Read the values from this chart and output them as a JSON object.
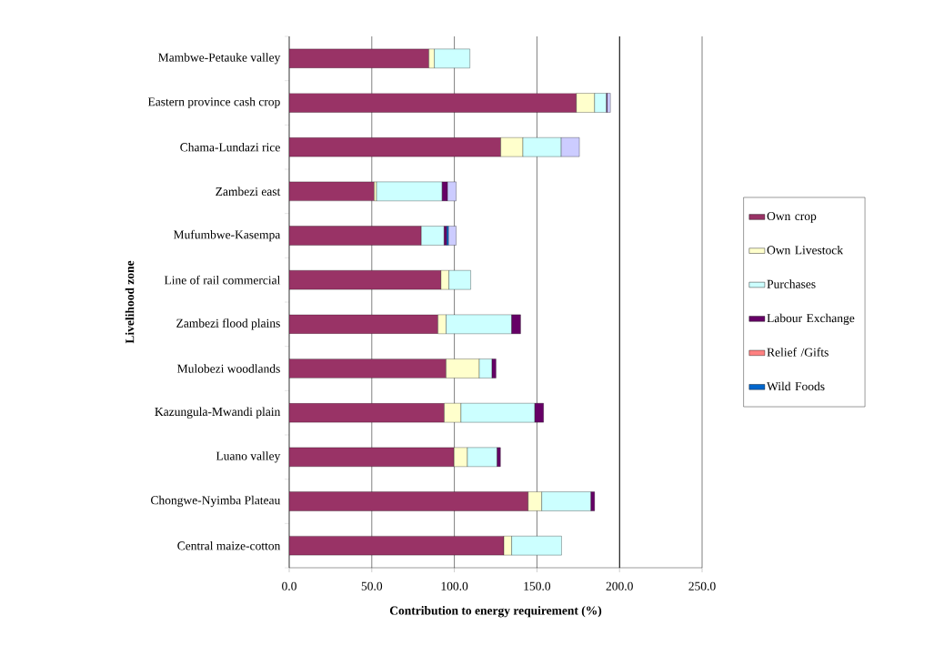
{
  "chart_data": {
    "type": "bar",
    "orientation": "horizontal",
    "stacked": true,
    "xlabel": "Contribution to energy requirement (%)",
    "ylabel": "Livelihood zone",
    "categories": [
      "Mambwe-Petauke valley",
      "Eastern province cash crop",
      "Chama-Lundazi rice",
      "Zambezi east",
      "Mufumbwe-Kasempa",
      "Line of rail commercial",
      "Zambezi flood plains",
      "Mulobezi woodlands",
      "Kazungula-Mwandi plain",
      "Luano valley",
      "Chongwe-Nyimba Plateau",
      "Central maize-cotton"
    ],
    "series": [
      {
        "name": "Own crop",
        "color": "#993366",
        "values": [
          84.6,
          173.9,
          128.1,
          51.5,
          80.0,
          91.9,
          90.1,
          95.0,
          93.9,
          99.8,
          144.7,
          130.0
        ]
      },
      {
        "name": "Own Livestock",
        "color": "#ffffcc",
        "values": [
          3.3,
          11.0,
          13.4,
          1.4,
          null,
          4.8,
          4.9,
          20.1,
          10.1,
          8.1,
          8.2,
          4.7
        ]
      },
      {
        "name": "Purchases",
        "color": "#ccffff",
        "values": [
          21.5,
          7.2,
          23.2,
          39.7,
          13.8,
          13.2,
          39.7,
          7.7,
          44.7,
          18.0,
          29.8,
          30.2
        ]
      },
      {
        "name": "Labour Exchange",
        "color": "#660066",
        "values": [
          null,
          0.5,
          null,
          3.3,
          1.6,
          null,
          5.4,
          2.4,
          5.3,
          2.0,
          2.2,
          null
        ]
      },
      {
        "name": "Relief /Gifts",
        "color": "#ff8080",
        "values": [
          null,
          null,
          null,
          null,
          null,
          null,
          null,
          null,
          null,
          null,
          null,
          null
        ]
      },
      {
        "name": "Wild Foods",
        "color": "#0066cc",
        "values": [
          null,
          null,
          null,
          null,
          1.1,
          null,
          null,
          null,
          null,
          null,
          null,
          null
        ]
      },
      {
        "color": "#ccccff",
        "values": [
          null,
          1.9,
          11.0,
          5.2,
          4.6,
          null,
          null,
          null,
          null,
          null,
          null,
          null
        ]
      }
    ],
    "xlim": [
      0,
      250
    ],
    "xticks": [
      {
        "value": 0,
        "label": "0.0"
      },
      {
        "value": 50,
        "label": "50.0"
      },
      {
        "value": 100,
        "label": "100.0"
      },
      {
        "value": 150,
        "label": "150.0"
      },
      {
        "value": 200,
        "label": "200.0"
      },
      {
        "value": 250,
        "label": "250.0"
      }
    ],
    "grid": "x",
    "ref_lines": [
      {
        "axis": "x",
        "value": 200,
        "color": "#000000"
      }
    ],
    "legend": "right"
  }
}
